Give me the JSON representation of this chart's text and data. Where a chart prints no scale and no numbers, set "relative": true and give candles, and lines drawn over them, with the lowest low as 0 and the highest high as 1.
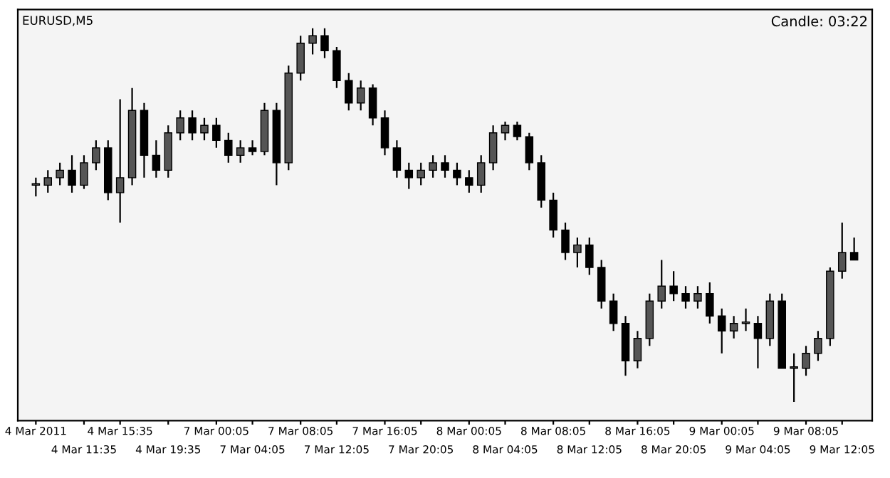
{
  "chart_data": {
    "type": "candlestick",
    "title": "EURUSD,M5",
    "relative": true,
    "annotations": [
      "Candle: 03:22"
    ],
    "categories": [
      "4 Mar 2011",
      null,
      null,
      null,
      "4 Mar 11:35",
      null,
      null,
      "4 Mar 15:35",
      null,
      null,
      null,
      "4 Mar 19:35",
      null,
      null,
      null,
      "7 Mar 00:05",
      null,
      null,
      "7 Mar 04:05",
      null,
      null,
      null,
      "7 Mar 08:05",
      null,
      null,
      "7 Mar 12:05",
      null,
      null,
      null,
      "7 Mar 16:05",
      null,
      null,
      "7 Mar 20:05",
      null,
      null,
      null,
      "8 Mar 00:05",
      null,
      null,
      "8 Mar 04:05",
      null,
      null,
      null,
      "8 Mar 08:05",
      null,
      null,
      "8 Mar 12:05",
      null,
      null,
      null,
      "8 Mar 16:05",
      null,
      null,
      "8 Mar 20:05",
      null,
      null,
      null,
      "9 Mar 00:05",
      null,
      null,
      "9 Mar 04:05",
      null,
      null,
      null,
      "9 Mar 08:05",
      null,
      null,
      "9 Mar 12:05",
      null
    ],
    "ohlc": [
      [
        0.58,
        0.6,
        0.55,
        0.58
      ],
      [
        0.58,
        0.62,
        0.56,
        0.6
      ],
      [
        0.6,
        0.64,
        0.58,
        0.62
      ],
      [
        0.62,
        0.66,
        0.56,
        0.58
      ],
      [
        0.58,
        0.66,
        0.57,
        0.64
      ],
      [
        0.64,
        0.7,
        0.62,
        0.68
      ],
      [
        0.68,
        0.7,
        0.54,
        0.56
      ],
      [
        0.56,
        0.81,
        0.48,
        0.6
      ],
      [
        0.6,
        0.84,
        0.58,
        0.78
      ],
      [
        0.78,
        0.8,
        0.6,
        0.66
      ],
      [
        0.66,
        0.7,
        0.6,
        0.62
      ],
      [
        0.62,
        0.74,
        0.6,
        0.72
      ],
      [
        0.72,
        0.78,
        0.7,
        0.76
      ],
      [
        0.76,
        0.78,
        0.7,
        0.72
      ],
      [
        0.72,
        0.76,
        0.7,
        0.74
      ],
      [
        0.74,
        0.76,
        0.68,
        0.7
      ],
      [
        0.7,
        0.72,
        0.64,
        0.66
      ],
      [
        0.66,
        0.7,
        0.64,
        0.68
      ],
      [
        0.68,
        0.7,
        0.66,
        0.67
      ],
      [
        0.67,
        0.8,
        0.66,
        0.78
      ],
      [
        0.78,
        0.8,
        0.58,
        0.64
      ],
      [
        0.64,
        0.9,
        0.62,
        0.88
      ],
      [
        0.88,
        0.98,
        0.86,
        0.96
      ],
      [
        0.96,
        1.0,
        0.93,
        0.98
      ],
      [
        0.98,
        1.0,
        0.92,
        0.94
      ],
      [
        0.94,
        0.95,
        0.84,
        0.86
      ],
      [
        0.86,
        0.88,
        0.78,
        0.8
      ],
      [
        0.8,
        0.86,
        0.78,
        0.84
      ],
      [
        0.84,
        0.85,
        0.74,
        0.76
      ],
      [
        0.76,
        0.78,
        0.66,
        0.68
      ],
      [
        0.68,
        0.7,
        0.6,
        0.62
      ],
      [
        0.62,
        0.64,
        0.57,
        0.6
      ],
      [
        0.6,
        0.64,
        0.58,
        0.62
      ],
      [
        0.62,
        0.66,
        0.6,
        0.64
      ],
      [
        0.64,
        0.66,
        0.6,
        0.62
      ],
      [
        0.62,
        0.64,
        0.58,
        0.6
      ],
      [
        0.6,
        0.62,
        0.56,
        0.58
      ],
      [
        0.58,
        0.66,
        0.56,
        0.64
      ],
      [
        0.64,
        0.74,
        0.62,
        0.72
      ],
      [
        0.72,
        0.75,
        0.7,
        0.74
      ],
      [
        0.74,
        0.75,
        0.7,
        0.71
      ],
      [
        0.71,
        0.72,
        0.62,
        0.64
      ],
      [
        0.64,
        0.66,
        0.52,
        0.54
      ],
      [
        0.54,
        0.56,
        0.44,
        0.46
      ],
      [
        0.46,
        0.48,
        0.38,
        0.4
      ],
      [
        0.4,
        0.44,
        0.36,
        0.42
      ],
      [
        0.42,
        0.44,
        0.34,
        0.36
      ],
      [
        0.36,
        0.38,
        0.25,
        0.27
      ],
      [
        0.27,
        0.29,
        0.19,
        0.21
      ],
      [
        0.21,
        0.23,
        0.07,
        0.11
      ],
      [
        0.11,
        0.19,
        0.09,
        0.17
      ],
      [
        0.17,
        0.29,
        0.15,
        0.27
      ],
      [
        0.27,
        0.38,
        0.25,
        0.31
      ],
      [
        0.31,
        0.35,
        0.27,
        0.29
      ],
      [
        0.29,
        0.31,
        0.25,
        0.27
      ],
      [
        0.27,
        0.31,
        0.25,
        0.29
      ],
      [
        0.29,
        0.32,
        0.21,
        0.23
      ],
      [
        0.23,
        0.25,
        0.13,
        0.19
      ],
      [
        0.19,
        0.23,
        0.17,
        0.21
      ],
      [
        0.21,
        0.25,
        0.19,
        0.21
      ],
      [
        0.21,
        0.23,
        0.09,
        0.17
      ],
      [
        0.17,
        0.29,
        0.15,
        0.27
      ],
      [
        0.27,
        0.29,
        0.09,
        0.09
      ],
      [
        0.09,
        0.13,
        0.0,
        0.09
      ],
      [
        0.09,
        0.15,
        0.07,
        0.13
      ],
      [
        0.13,
        0.19,
        0.11,
        0.17
      ],
      [
        0.17,
        0.36,
        0.15,
        0.35
      ],
      [
        0.35,
        0.48,
        0.33,
        0.4
      ],
      [
        0.4,
        0.44,
        0.38,
        0.38
      ]
    ]
  }
}
